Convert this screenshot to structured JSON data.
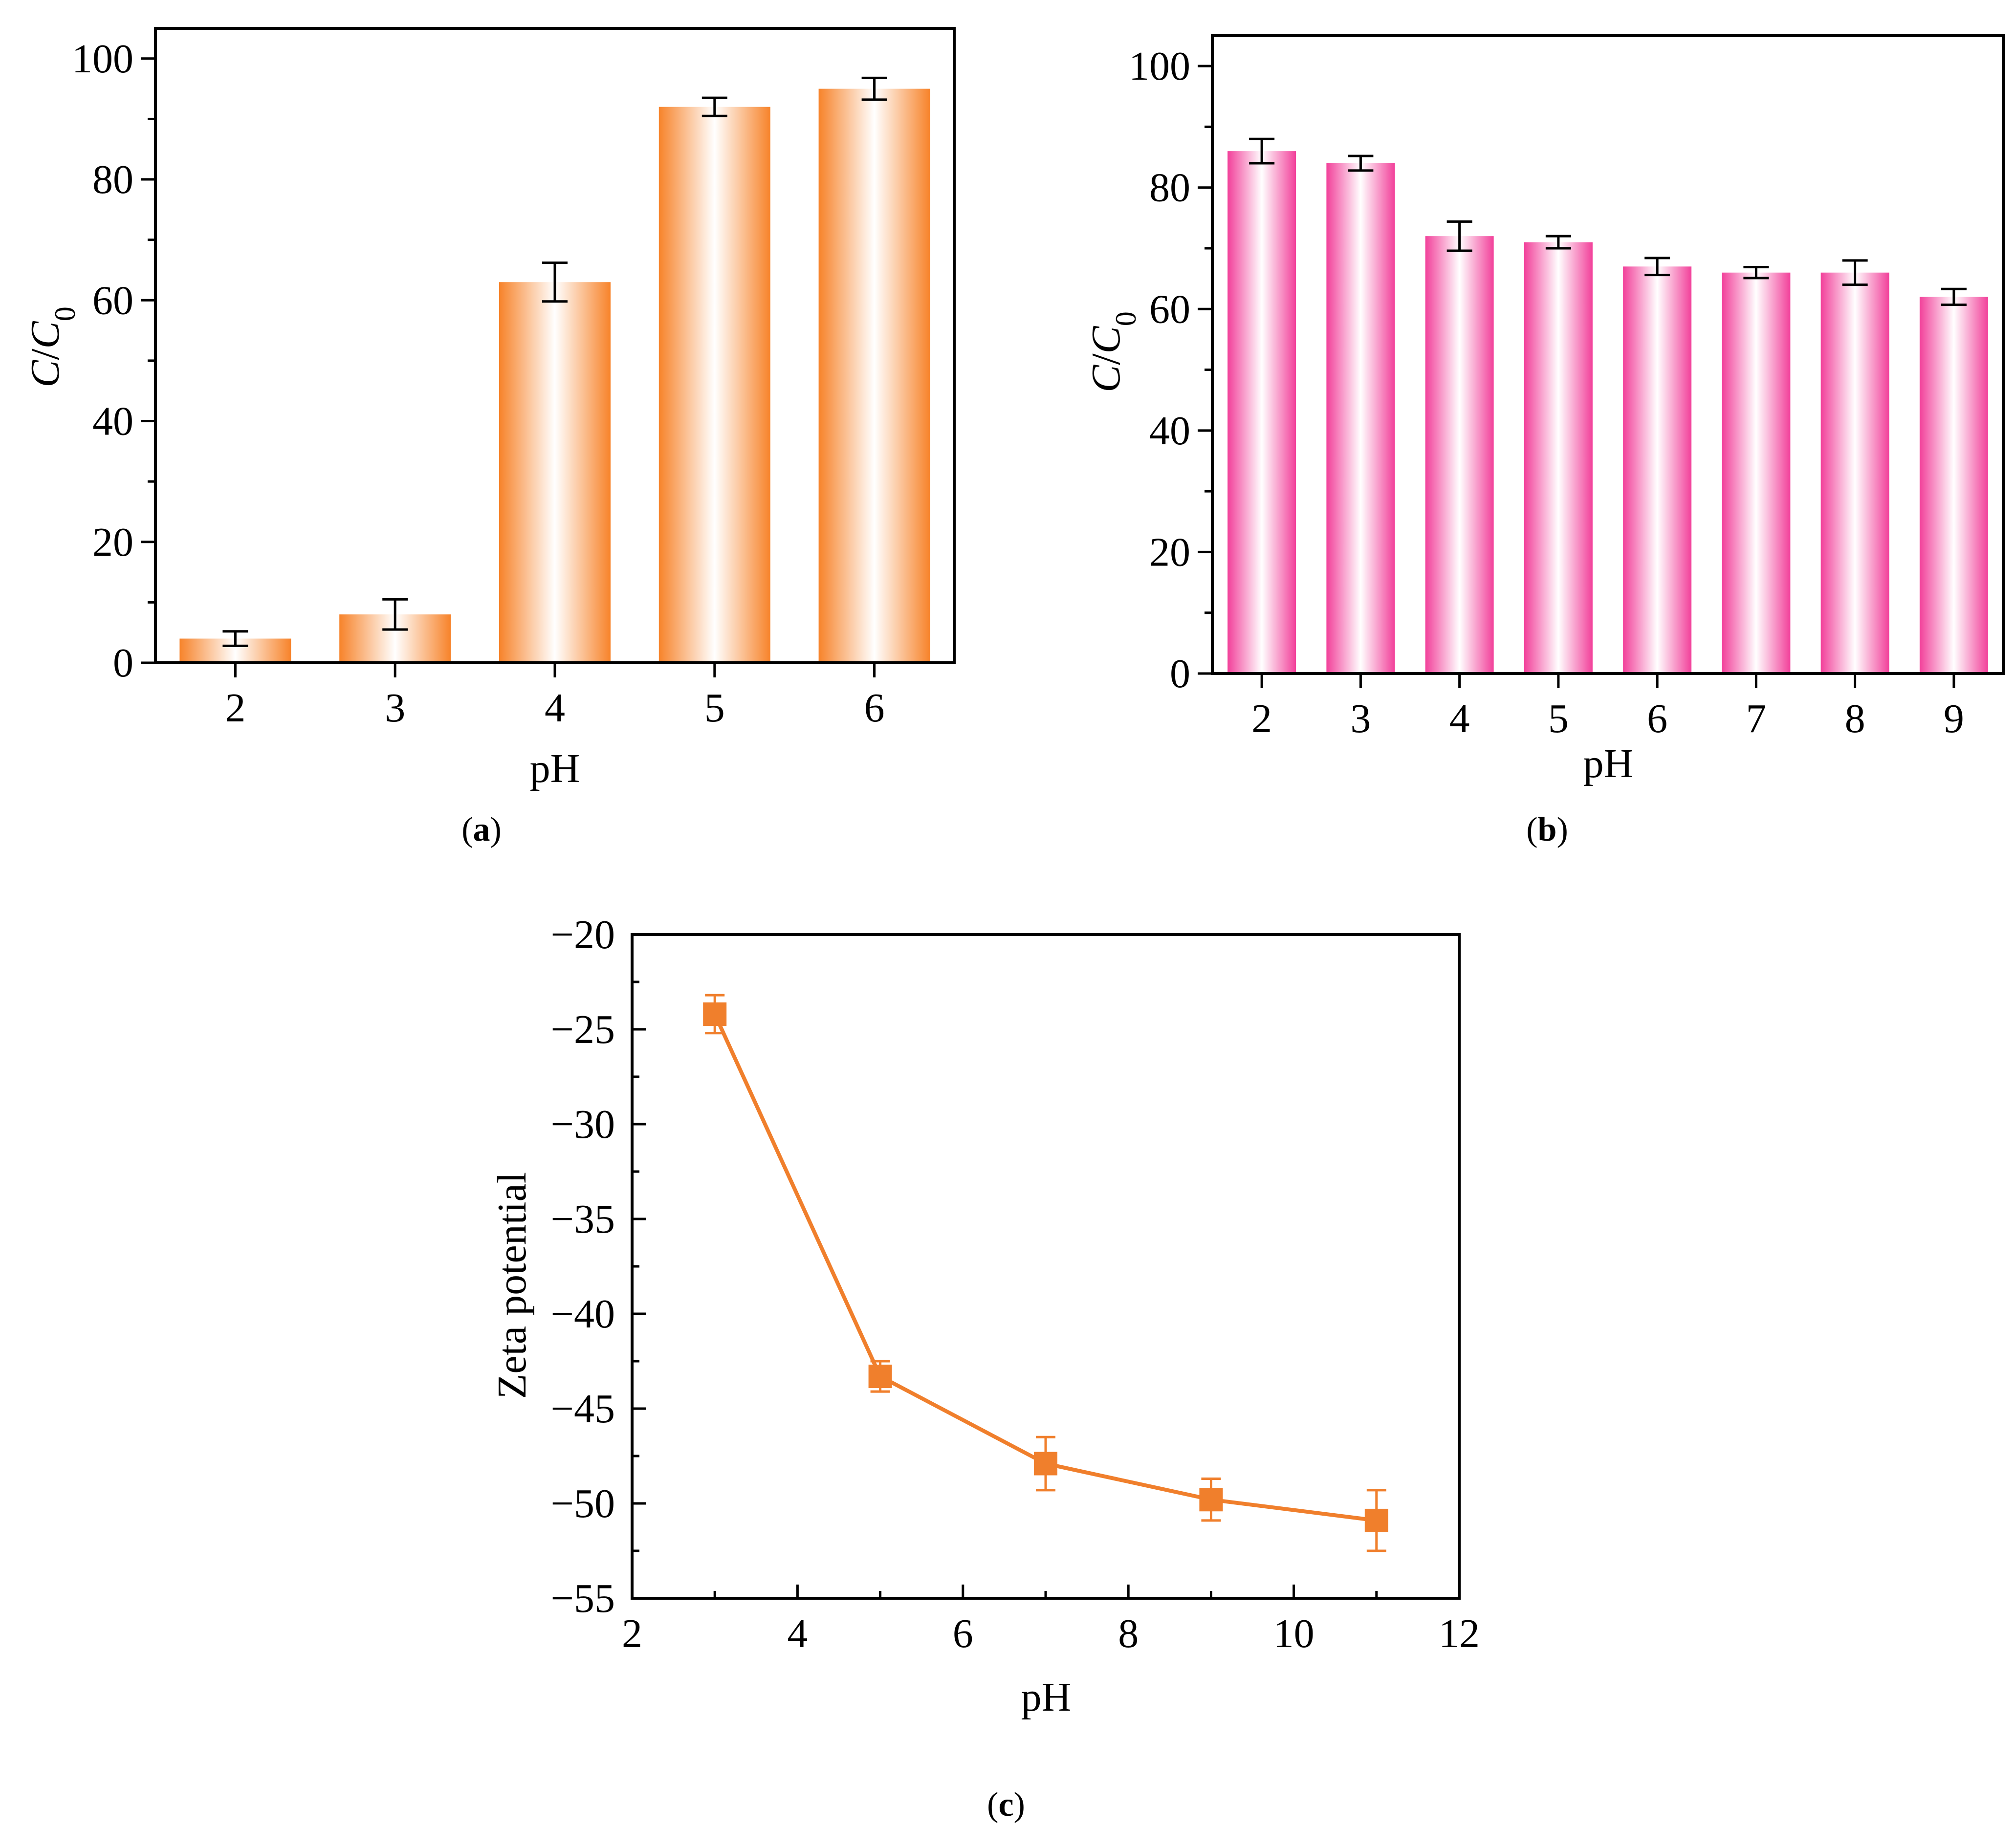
{
  "chart_data": [
    {
      "id": "a",
      "type": "bar",
      "panel_label": "a",
      "xlabel": "pH",
      "ylabel_main": "C",
      "ylabel_div": "/",
      "ylabel_sub_base": "C",
      "ylabel_sub": "0",
      "categories": [
        "2",
        "3",
        "4",
        "5",
        "6"
      ],
      "values": [
        4,
        8,
        63,
        92,
        95
      ],
      "errors": [
        1.2,
        2.5,
        3.2,
        1.5,
        1.8
      ],
      "ylim": [
        0,
        105
      ],
      "yticks": [
        0,
        20,
        40,
        60,
        80,
        100
      ],
      "ytick_labels": [
        "0",
        "20",
        "40",
        "60",
        "80",
        "100"
      ],
      "bar_color": "#F7832A"
    },
    {
      "id": "b",
      "type": "bar",
      "panel_label": "b",
      "xlabel": "pH",
      "ylabel_main": "C",
      "ylabel_div": "/",
      "ylabel_sub_base": "C",
      "ylabel_sub": "0",
      "categories": [
        "2",
        "3",
        "4",
        "5",
        "6",
        "7",
        "8",
        "9"
      ],
      "values": [
        86,
        84,
        72,
        71,
        67,
        66,
        66,
        62
      ],
      "errors": [
        2.0,
        1.2,
        2.4,
        1.0,
        1.4,
        0.9,
        2.0,
        1.3
      ],
      "ylim": [
        0,
        105
      ],
      "yticks": [
        0,
        20,
        40,
        60,
        80,
        100
      ],
      "ytick_labels": [
        "0",
        "20",
        "40",
        "60",
        "80",
        "100"
      ],
      "bar_color": "#F2409A"
    },
    {
      "id": "c",
      "type": "line",
      "panel_label": "c",
      "xlabel": "pH",
      "ylabel": "Zeta potential",
      "x": [
        3,
        5,
        7,
        9,
        11
      ],
      "y": [
        -24.2,
        -43.3,
        -47.9,
        -49.8,
        -50.9
      ],
      "errors": [
        1.0,
        0.8,
        1.4,
        1.1,
        1.6
      ],
      "xlim": [
        2,
        12
      ],
      "ylim": [
        -55,
        -20
      ],
      "xticks": [
        2,
        4,
        6,
        8,
        10,
        12
      ],
      "xtick_labels": [
        "2",
        "4",
        "6",
        "8",
        "10",
        "12"
      ],
      "yticks": [
        -55,
        -50,
        -45,
        -40,
        -35,
        -30,
        -25,
        -20
      ],
      "ytick_labels": [
        "−55",
        "−50",
        "−45",
        "−40",
        "−35",
        "−30",
        "−25",
        "−20"
      ],
      "line_color": "#F07F2C"
    }
  ]
}
